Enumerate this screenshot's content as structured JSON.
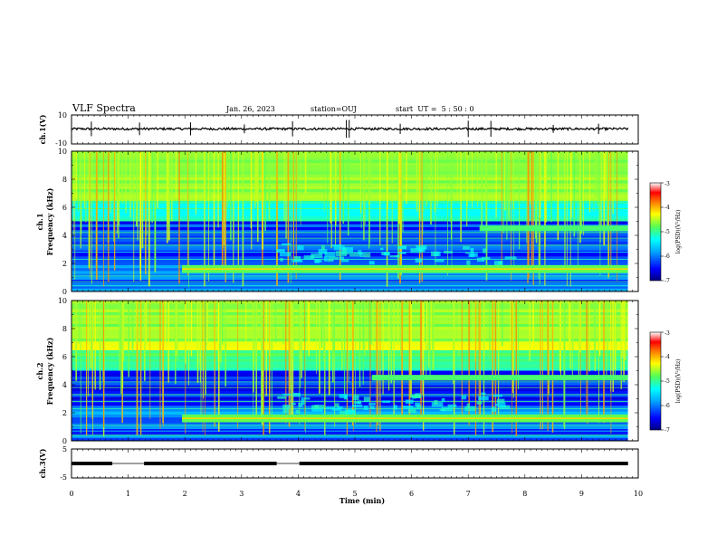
{
  "header": {
    "title": "VLF Spectra",
    "date": "Jan. 26, 2023",
    "station": "station=OUJ",
    "start_time": "start  UT =  5 : 50 : 0"
  },
  "chart_data": [
    {
      "type": "line",
      "ylabel": "ch.1(V)",
      "ylim": [
        -10,
        10
      ],
      "ytick_labels": [
        "10",
        "-10"
      ],
      "baseline": 0.4,
      "spike_times_min": [
        0.35,
        1.2,
        2.1,
        3.05,
        3.9,
        4.85,
        4.9,
        5.8,
        7.0,
        7.4,
        8.5,
        9.3
      ],
      "description_series": "broadband ch.1 waveform"
    },
    {
      "type": "heatmap",
      "ylabel": "ch.1\nFrequency (kHz)",
      "ylabel_line1": "ch.1",
      "ylabel_line2": "Frequency (kHz)",
      "xlim": [
        0,
        10
      ],
      "ylim": [
        0,
        10
      ],
      "ytick_labels": [
        "0",
        "2",
        "4",
        "6",
        "8",
        "10"
      ],
      "colorbar": {
        "label": "log(PSD)(V²/Hz)",
        "range": [
          -7,
          -3
        ],
        "tick_labels": [
          "-3",
          "-4",
          "-5",
          "-6",
          "-7"
        ]
      },
      "features": {
        "band_low_khz": 1.6,
        "band_low_start_min": 1.95,
        "band_high_khz": 4.5,
        "band_high_start_min": 7.2
      }
    },
    {
      "type": "heatmap",
      "ylabel": "ch.2\nFrequency (kHz)",
      "ylabel_line1": "ch.2",
      "ylabel_line2": "Frequency (kHz)",
      "xlim": [
        0,
        10
      ],
      "ylim": [
        0,
        10
      ],
      "ytick_labels": [
        "0",
        "2",
        "4",
        "6",
        "8",
        "10"
      ],
      "colorbar": {
        "label": "log(PSD)(V²/Hz)",
        "range": [
          -7,
          -3
        ],
        "tick_labels": [
          "-3",
          "-4",
          "-5",
          "-6",
          "-7"
        ]
      },
      "features": {
        "band_low_khz": 1.6,
        "band_low_start_min": 1.95,
        "band_high_khz": 4.5,
        "band_high_start_min": 5.3
      }
    },
    {
      "type": "line",
      "ylabel": "ch.3(V)",
      "ylim": [
        -5,
        5
      ],
      "ytick_labels": [
        "5",
        "-5"
      ],
      "level": 0,
      "gaps_min": [
        [
          0.72,
          1.28
        ],
        [
          3.62,
          4.02
        ]
      ]
    }
  ],
  "xaxis": {
    "label": "Time (min)",
    "xlim": [
      0,
      10
    ],
    "tick_labels": [
      "0",
      "1",
      "2",
      "3",
      "4",
      "5",
      "6",
      "7",
      "8",
      "9",
      "10"
    ]
  },
  "colors": {
    "colormap": [
      "#00007f",
      "#0000ff",
      "#00aaff",
      "#00ffff",
      "#55ff55",
      "#ffff00",
      "#ff7f00",
      "#ff0000",
      "#ffffff"
    ]
  }
}
